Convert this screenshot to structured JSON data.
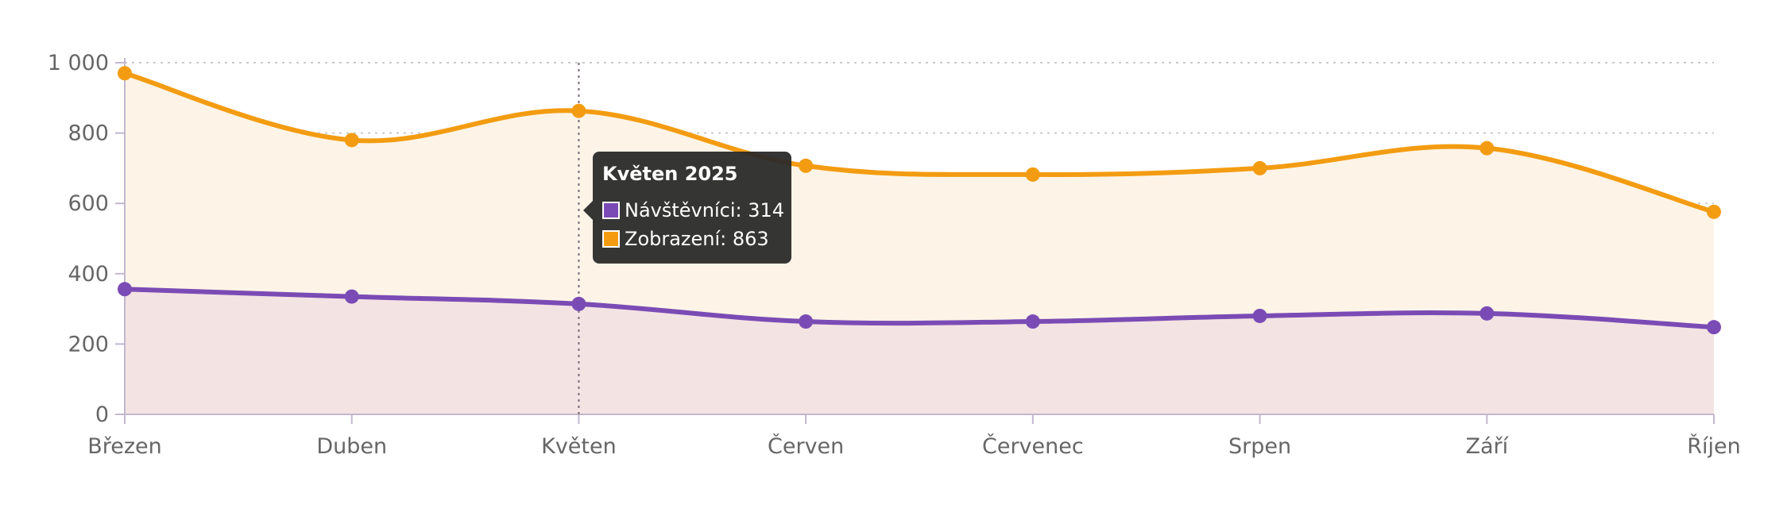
{
  "chart_data": {
    "type": "area",
    "categories": [
      "Březen",
      "Duben",
      "Květen",
      "Červen",
      "Červenec",
      "Srpen",
      "Září",
      "Říjen"
    ],
    "series": [
      {
        "name": "Návštěvníci",
        "values": [
          356,
          335,
          314,
          264,
          264,
          280,
          287,
          248
        ],
        "color": "#7b4bb5",
        "fill": "#f3e3e3"
      },
      {
        "name": "Zobrazení",
        "values": [
          970,
          780,
          863,
          707,
          682,
          700,
          757,
          576
        ],
        "color": "#f39c12",
        "fill": "#fdf4e7"
      }
    ],
    "y_ticks": [
      "0",
      "200",
      "400",
      "600",
      "800",
      "1 000"
    ],
    "ylim": [
      0,
      1000
    ],
    "grid": true,
    "grid_style": "dotted",
    "smooth": true,
    "tooltip": {
      "title": "Květen 2025",
      "category_index": 2,
      "rows": [
        {
          "label": "Návštěvníci: 314",
          "color": "#7b4bb5"
        },
        {
          "label": "Zobrazení: 863",
          "color": "#f39c12"
        }
      ]
    }
  }
}
